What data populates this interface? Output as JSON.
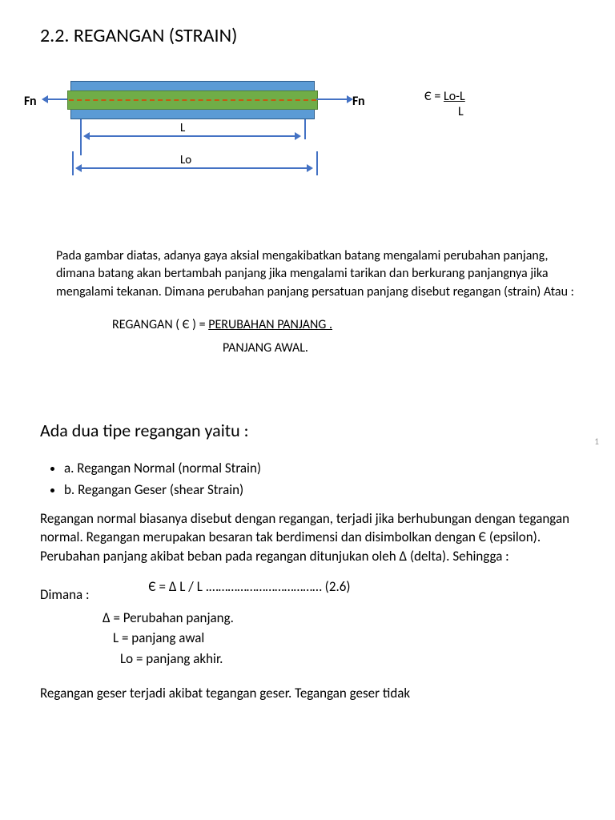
{
  "title": "2.2. REGANGAN (STRAIN)",
  "diagram": {
    "fn_left": "Fn",
    "fn_right": "Fn",
    "label_L": "L",
    "label_Lo": "Lo",
    "bar_outer_color": "#5b9bd5",
    "bar_inner_color": "#70ad47",
    "dash_color": "#c55a11",
    "arrow_color": "#4472c4"
  },
  "formula": {
    "lhs": "Є =",
    "numerator": "Lo-L",
    "denominator": "L"
  },
  "para1": "Pada gambar diatas, adanya gaya aksial mengakibatkan  batang mengalami perubahan panjang, dimana batang akan  bertambah panjang jika mengalami tarikan  dan berkurang panjangnya jika mengalami tekanan. Dimana perubahan panjang  persatuan panjang disebut regangan (strain) Atau :",
  "definition": {
    "lhs": "REGANGAN ( Є ) =",
    "numerator": "PERUBAHAN PANJANG .",
    "denominator": "PANJANG AWAL."
  },
  "page_number": "1",
  "section2": {
    "heading": "Ada dua tipe regangan yaitu :",
    "bullets": [
      "a. Regangan Normal (normal Strain)",
      "b. Regangan Geser (shear Strain)"
    ],
    "para": "Regangan normal biasanya disebut dengan regangan, terjadi jika berhubungan dengan tegangan normal. Regangan merupakan besaran tak berdimensi dan disimbolkan dengan   Є  (epsilon). Perubahan panjang akibat  beban pada regangan  ditunjukan oleh  Δ  (delta). Sehingga  :",
    "dimana_label": "Dimana :",
    "equation": "Є    =    Δ L / L .………………………………   (2.6)",
    "defs": [
      "Δ  = Perubahan panjang.",
      "L = panjang awal",
      "Lo  = panjang akhir."
    ],
    "cutoff": "Regangan geser terjadi akibat tegangan geser. Tegangan geser tidak"
  }
}
